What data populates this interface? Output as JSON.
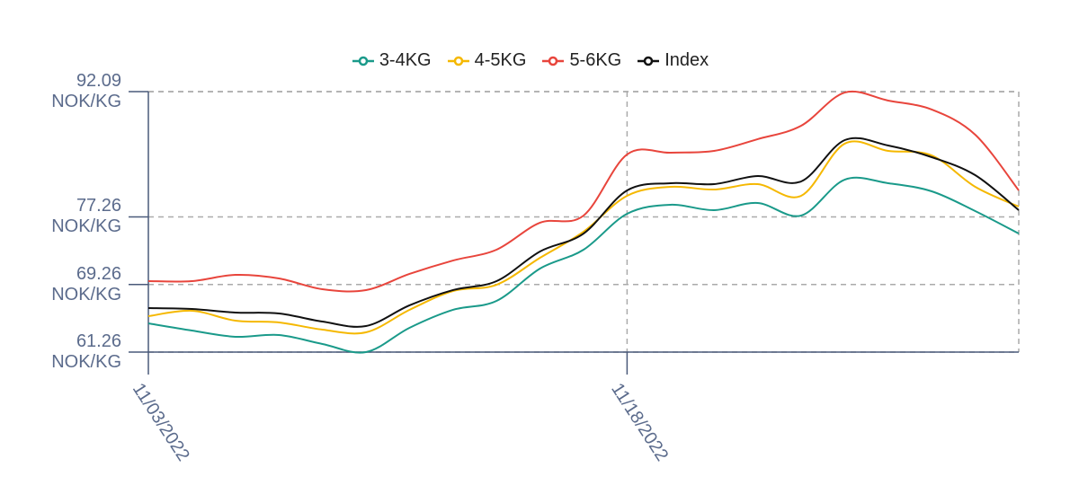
{
  "chart_data": {
    "type": "line",
    "categories": [
      "11/03/2022",
      null,
      null,
      null,
      null,
      null,
      null,
      null,
      null,
      null,
      null,
      "11/18/2022",
      null,
      null,
      null,
      null,
      null,
      null,
      null,
      null,
      null
    ],
    "series": [
      {
        "name": "3-4KG",
        "color": "#1a9a8a",
        "values": [
          64.66,
          63.81,
          63.07,
          63.28,
          62.22,
          61.26,
          64.13,
          66.26,
          67.32,
          71.15,
          73.38,
          77.63,
          78.7,
          78.06,
          78.91,
          77.42,
          81.67,
          81.25,
          80.29,
          77.95,
          75.29
        ]
      },
      {
        "name": "4-5KG",
        "color": "#f5b800",
        "values": [
          65.51,
          66.15,
          64.98,
          64.77,
          63.92,
          63.6,
          66.26,
          68.49,
          69.23,
          72.42,
          75.51,
          79.76,
          80.82,
          80.5,
          81.14,
          79.76,
          85.93,
          85.07,
          84.54,
          80.82,
          78.48
        ]
      },
      {
        "name": "5-6KG",
        "color": "#e8453c",
        "values": [
          69.66,
          69.66,
          70.4,
          69.98,
          68.7,
          68.6,
          70.51,
          72.1,
          73.38,
          76.57,
          77.42,
          84.65,
          84.86,
          85.07,
          86.46,
          88.05,
          91.98,
          91.03,
          89.97,
          86.99,
          80.4
        ]
      },
      {
        "name": "Index",
        "color": "#111111",
        "values": [
          66.47,
          66.36,
          65.94,
          65.83,
          64.87,
          64.34,
          66.79,
          68.6,
          69.66,
          73.17,
          75.29,
          80.4,
          81.25,
          81.14,
          82.1,
          81.46,
          86.35,
          85.71,
          84.33,
          82.2,
          78.06
        ]
      }
    ],
    "ylim": [
      61.26,
      92.09
    ],
    "yticks": [
      {
        "value": 61.26,
        "label": "61.26 NOK/KG"
      },
      {
        "value": 69.26,
        "label": "69.26 NOK/KG"
      },
      {
        "value": 77.26,
        "label": "77.26 NOK/KG"
      },
      {
        "value": 92.09,
        "label": "92.09 NOK/KG"
      }
    ],
    "grid": true
  }
}
